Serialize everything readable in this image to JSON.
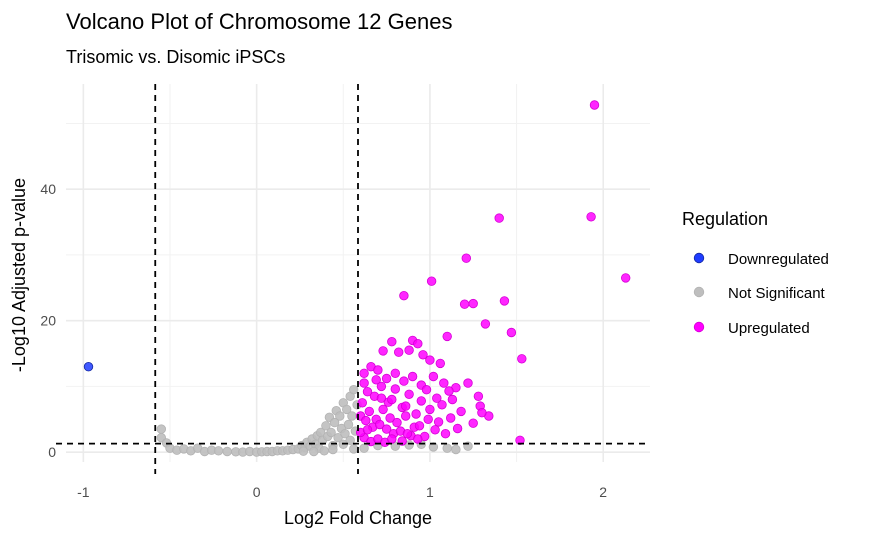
{
  "chart_data": {
    "type": "scatter",
    "title": "Volcano Plot of Chromosome 12 Genes",
    "subtitle": "Trisomic vs. Disomic iPSCs",
    "xlabel": "Log2 Fold Change",
    "ylabel": "-Log10 Adjusted p-value",
    "xlim": [
      -1.1,
      2.27
    ],
    "ylim": [
      -1.5,
      56
    ],
    "x_ticks": [
      -1,
      0,
      1,
      2
    ],
    "y_ticks": [
      0,
      20,
      40
    ],
    "grid": true,
    "thresholds": {
      "x": [
        -0.585,
        0.585
      ],
      "y": [
        1.3
      ]
    },
    "legend": {
      "title": "Regulation",
      "position": "right",
      "entries": [
        {
          "label": "Downregulated",
          "color": "#1f3cff"
        },
        {
          "label": "Not Significant",
          "color": "#bebebe"
        },
        {
          "label": "Upregulated",
          "color": "#ff00ff"
        }
      ]
    },
    "series": [
      {
        "name": "Not Significant",
        "color": "#bebebe",
        "points": [
          [
            -0.55,
            3.5
          ],
          [
            -0.55,
            2.2
          ],
          [
            -0.52,
            1.4
          ],
          [
            -0.5,
            0.6
          ],
          [
            -0.46,
            0.3
          ],
          [
            -0.42,
            0.5
          ],
          [
            -0.38,
            0.2
          ],
          [
            -0.34,
            0.6
          ],
          [
            -0.3,
            0.1
          ],
          [
            -0.26,
            0.3
          ],
          [
            -0.22,
            0.2
          ],
          [
            -0.17,
            0.1
          ],
          [
            -0.12,
            0.05
          ],
          [
            -0.08,
            0.0
          ],
          [
            -0.04,
            0.1
          ],
          [
            0.0,
            0.0
          ],
          [
            0.03,
            0.05
          ],
          [
            0.06,
            0.1
          ],
          [
            0.09,
            0.1
          ],
          [
            0.12,
            0.2
          ],
          [
            0.15,
            0.2
          ],
          [
            0.18,
            0.3
          ],
          [
            0.21,
            0.4
          ],
          [
            0.24,
            0.5
          ],
          [
            0.26,
            1.0
          ],
          [
            0.28,
            0.7
          ],
          [
            0.29,
            1.5
          ],
          [
            0.31,
            0.9
          ],
          [
            0.32,
            2.0
          ],
          [
            0.34,
            1.2
          ],
          [
            0.35,
            2.5
          ],
          [
            0.36,
            0.6
          ],
          [
            0.37,
            3.0
          ],
          [
            0.38,
            1.8
          ],
          [
            0.4,
            4.0
          ],
          [
            0.41,
            2.4
          ],
          [
            0.42,
            5.3
          ],
          [
            0.43,
            3.0
          ],
          [
            0.44,
            1.0
          ],
          [
            0.45,
            4.5
          ],
          [
            0.46,
            6.3
          ],
          [
            0.47,
            2.2
          ],
          [
            0.48,
            5.5
          ],
          [
            0.49,
            3.6
          ],
          [
            0.5,
            7.5
          ],
          [
            0.51,
            2.8
          ],
          [
            0.52,
            6.5
          ],
          [
            0.53,
            4.2
          ],
          [
            0.54,
            8.5
          ],
          [
            0.55,
            5.5
          ],
          [
            0.56,
            9.5
          ],
          [
            0.57,
            3.2
          ],
          [
            0.58,
            7.2
          ],
          [
            0.5,
            1.2
          ],
          [
            0.54,
            1.8
          ],
          [
            0.56,
            0.5
          ],
          [
            0.44,
            0.4
          ],
          [
            0.39,
            0.2
          ],
          [
            0.33,
            0.1
          ],
          [
            0.27,
            0.15
          ],
          [
            0.95,
            1.2
          ],
          [
            1.02,
            0.8
          ],
          [
            1.1,
            0.6
          ],
          [
            1.15,
            0.4
          ],
          [
            1.22,
            0.9
          ],
          [
            0.62,
            0.6
          ],
          [
            0.7,
            1.0
          ],
          [
            0.8,
            0.9
          ],
          [
            0.88,
            1.1
          ]
        ]
      },
      {
        "name": "Upregulated",
        "color": "#ff00ff",
        "points": [
          [
            1.95,
            52.8
          ],
          [
            1.4,
            35.6
          ],
          [
            1.93,
            35.8
          ],
          [
            2.13,
            26.5
          ],
          [
            1.01,
            26.0
          ],
          [
            1.21,
            29.5
          ],
          [
            0.85,
            23.8
          ],
          [
            1.2,
            22.5
          ],
          [
            1.25,
            22.6
          ],
          [
            1.43,
            23.0
          ],
          [
            1.32,
            19.5
          ],
          [
            1.47,
            18.2
          ],
          [
            1.1,
            17.6
          ],
          [
            1.53,
            14.2
          ],
          [
            1.52,
            1.8
          ],
          [
            0.9,
            17.0
          ],
          [
            0.93,
            16.5
          ],
          [
            0.78,
            16.8
          ],
          [
            0.82,
            15.2
          ],
          [
            0.88,
            15.5
          ],
          [
            0.73,
            15.4
          ],
          [
            0.96,
            14.8
          ],
          [
            1.0,
            14.0
          ],
          [
            1.06,
            13.5
          ],
          [
            0.62,
            12.0
          ],
          [
            0.66,
            13.0
          ],
          [
            0.7,
            12.5
          ],
          [
            0.75,
            11.2
          ],
          [
            0.8,
            12.0
          ],
          [
            0.85,
            10.8
          ],
          [
            0.9,
            11.5
          ],
          [
            0.95,
            10.2
          ],
          [
            1.02,
            11.5
          ],
          [
            1.08,
            10.5
          ],
          [
            1.15,
            9.8
          ],
          [
            1.22,
            10.5
          ],
          [
            1.28,
            8.5
          ],
          [
            1.13,
            8.0
          ],
          [
            1.07,
            7.2
          ],
          [
            1.0,
            6.5
          ],
          [
            0.95,
            7.8
          ],
          [
            0.92,
            5.8
          ],
          [
            0.88,
            8.8
          ],
          [
            0.84,
            6.8
          ],
          [
            0.8,
            9.6
          ],
          [
            0.76,
            7.6
          ],
          [
            0.72,
            10.0
          ],
          [
            0.68,
            8.5
          ],
          [
            0.64,
            9.2
          ],
          [
            0.61,
            7.5
          ],
          [
            0.6,
            5.5
          ],
          [
            0.63,
            4.8
          ],
          [
            0.65,
            6.2
          ],
          [
            0.67,
            3.8
          ],
          [
            0.69,
            5.0
          ],
          [
            0.71,
            4.2
          ],
          [
            0.73,
            6.5
          ],
          [
            0.75,
            3.5
          ],
          [
            0.77,
            5.2
          ],
          [
            0.79,
            2.8
          ],
          [
            0.81,
            4.5
          ],
          [
            0.83,
            3.2
          ],
          [
            0.86,
            5.5
          ],
          [
            0.89,
            2.5
          ],
          [
            0.91,
            3.8
          ],
          [
            0.94,
            4.0
          ],
          [
            0.97,
            2.4
          ],
          [
            0.99,
            5.0
          ],
          [
            1.03,
            3.4
          ],
          [
            1.05,
            4.6
          ],
          [
            1.09,
            2.8
          ],
          [
            1.12,
            5.2
          ],
          [
            1.16,
            3.6
          ],
          [
            1.18,
            6.2
          ],
          [
            1.25,
            4.4
          ],
          [
            1.29,
            7.0
          ],
          [
            1.34,
            5.5
          ],
          [
            1.3,
            6.0
          ],
          [
            0.62,
            2.2
          ],
          [
            0.66,
            1.6
          ],
          [
            0.7,
            2.0
          ],
          [
            0.74,
            1.5
          ],
          [
            0.78,
            2.0
          ],
          [
            0.84,
            1.7
          ],
          [
            0.87,
            2.8
          ],
          [
            0.93,
            2.0
          ],
          [
            0.6,
            3.0
          ],
          [
            0.64,
            3.4
          ],
          [
            0.72,
            8.2
          ],
          [
            0.78,
            8.0
          ],
          [
            0.86,
            7.0
          ],
          [
            0.98,
            9.5
          ],
          [
            1.04,
            8.2
          ],
          [
            1.11,
            9.3
          ],
          [
            0.69,
            11.0
          ],
          [
            0.62,
            10.5
          ]
        ]
      },
      {
        "name": "Downregulated",
        "color": "#1f3cff",
        "points": [
          [
            -0.97,
            13.0
          ]
        ]
      }
    ]
  }
}
